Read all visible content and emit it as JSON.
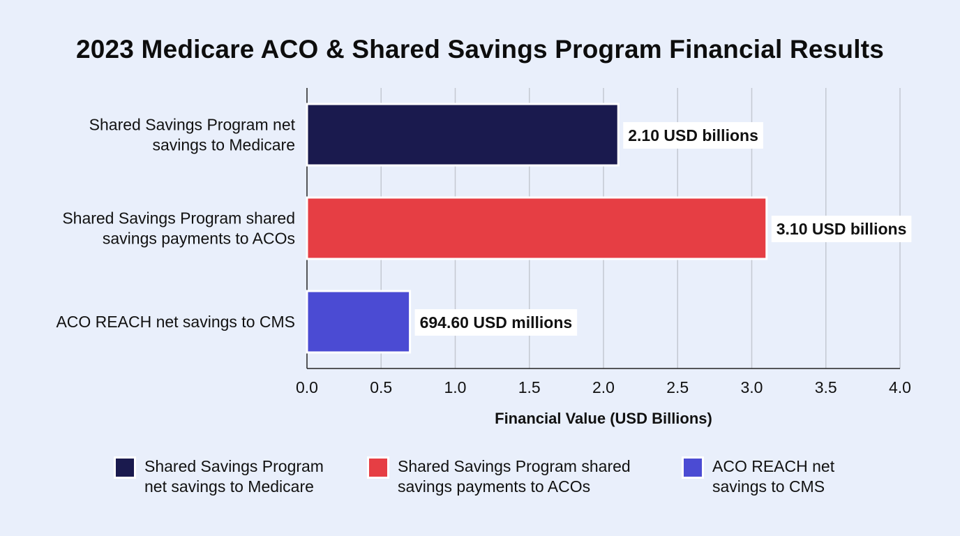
{
  "chart_data": {
    "type": "bar",
    "orientation": "horizontal",
    "title": "2023 Medicare ACO & Shared Savings Program Financial Results",
    "xlabel": "Financial Value (USD Billions)",
    "ylabel": "",
    "xlim": [
      0,
      4
    ],
    "xticks": [
      "0.0",
      "0.5",
      "1.0",
      "1.5",
      "2.0",
      "2.5",
      "3.0",
      "3.5",
      "4.0"
    ],
    "grid": "vertical",
    "legend_position": "bottom",
    "categories": [
      [
        "Shared Savings Program net",
        "savings to Medicare"
      ],
      [
        "Shared Savings Program shared",
        "savings payments to ACOs"
      ],
      [
        "ACO REACH net savings to CMS"
      ]
    ],
    "values": [
      2.1,
      3.1,
      0.6946
    ],
    "data_labels": [
      "2.10 USD billions",
      "3.10 USD billions",
      "694.60 USD millions"
    ],
    "colors": [
      "#1a1a4e",
      "#e63e44",
      "#4b4bd3"
    ],
    "legend": [
      [
        "Shared Savings Program",
        "net savings to Medicare"
      ],
      [
        "Shared Savings Program shared",
        "savings payments to ACOs"
      ],
      [
        "ACO REACH net",
        "savings to CMS"
      ]
    ]
  }
}
